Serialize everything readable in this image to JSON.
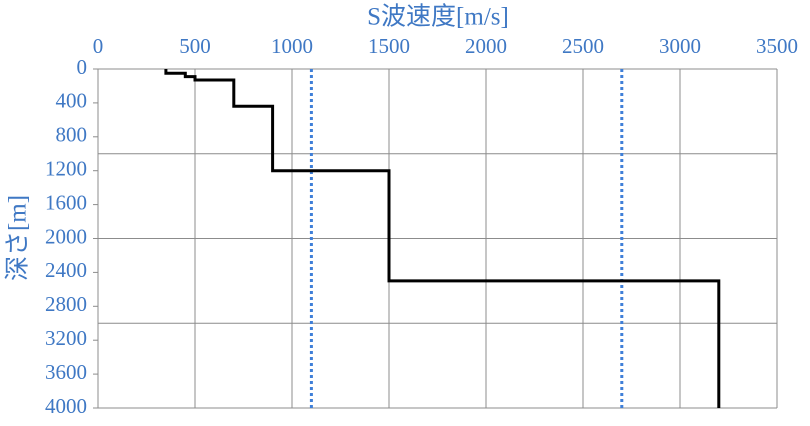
{
  "chart_data": {
    "type": "step-line",
    "x_title": "S波速度[m/s]",
    "y_title": "深さ[m]",
    "xlim": [
      0,
      3500
    ],
    "xticks": [
      0,
      500,
      1000,
      1500,
      2000,
      2500,
      3000,
      3500
    ],
    "ylim": [
      0,
      4000
    ],
    "yticks": [
      0,
      400,
      800,
      1200,
      1600,
      2000,
      2400,
      2800,
      3200,
      3600,
      4000
    ],
    "y_inverted": true,
    "x_axis_position": "top",
    "ygrid": [
      1000,
      2000,
      3000
    ],
    "grid": true,
    "series": [
      {
        "color": "#000000",
        "x": [
          350,
          350,
          450,
          450,
          500,
          500,
          700,
          700,
          900,
          900,
          1500,
          1500,
          3200,
          3200
        ],
        "values": [
          0,
          50,
          50,
          90,
          90,
          130,
          130,
          440,
          440,
          1200,
          1200,
          2500,
          2500,
          4000
        ]
      }
    ],
    "reference_lines": {
      "color": "#3f7fd8",
      "style": "dotted",
      "values": [
        1100,
        2700
      ]
    }
  }
}
